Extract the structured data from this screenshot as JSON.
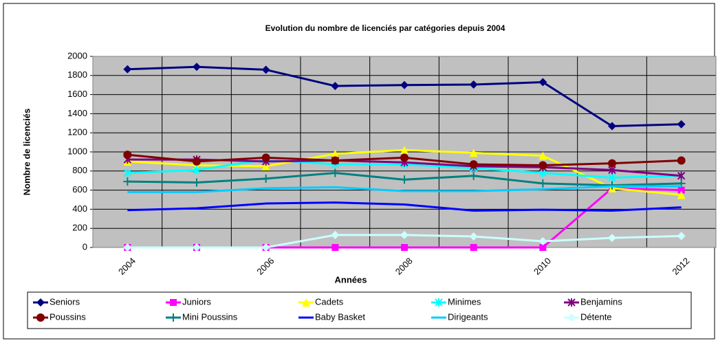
{
  "chart_data": {
    "type": "line",
    "title": "Evolution du nombre de licenciés par catégories depuis 2004",
    "x_label": "Années",
    "y_label": "Nombre de licenciés",
    "categories": [
      "2004",
      null,
      "2006",
      null,
      "2008",
      null,
      "2010",
      null,
      "2012"
    ],
    "ylim": [
      0,
      2000
    ],
    "yticks": [
      0,
      200,
      400,
      600,
      800,
      1000,
      1200,
      1400,
      1600,
      1800,
      2000
    ],
    "grid": true,
    "legend": "bottom",
    "series": [
      {
        "name": "Seniors",
        "color": "#000080",
        "marker": "diamond",
        "values": [
          1865,
          1890,
          1860,
          1690,
          1700,
          1705,
          1730,
          1270,
          1290
        ]
      },
      {
        "name": "Juniors",
        "color": "#ff00ff",
        "marker": "square",
        "values": [
          0,
          0,
          0,
          0,
          0,
          0,
          0,
          620,
          600
        ]
      },
      {
        "name": "Cadets",
        "color": "#ffff00",
        "marker": "triangle",
        "values": [
          900,
          860,
          850,
          980,
          1020,
          990,
          960,
          620,
          550
        ]
      },
      {
        "name": "Minimes",
        "color": "#00ffff",
        "marker": "star",
        "values": [
          780,
          810,
          920,
          870,
          870,
          830,
          780,
          730,
          750
        ]
      },
      {
        "name": "Benjamins",
        "color": "#800080",
        "marker": "star",
        "values": [
          920,
          920,
          900,
          910,
          890,
          850,
          840,
          810,
          750
        ]
      },
      {
        "name": "Poussins",
        "color": "#800000",
        "marker": "circle",
        "values": [
          970,
          900,
          940,
          910,
          940,
          870,
          860,
          880,
          910
        ]
      },
      {
        "name": "Mini Poussins",
        "color": "#008080",
        "marker": "plus",
        "values": [
          690,
          680,
          720,
          780,
          710,
          750,
          670,
          650,
          670
        ]
      },
      {
        "name": "Baby Basket",
        "color": "#0000ff",
        "marker": "none",
        "values": [
          390,
          410,
          460,
          470,
          450,
          385,
          395,
          385,
          420
        ]
      },
      {
        "name": "Dirigeants",
        "color": "#00ccff",
        "marker": "none",
        "values": [
          580,
          580,
          620,
          630,
          590,
          590,
          610,
          640,
          640
        ]
      },
      {
        "name": "Détente",
        "color": "#ccffff",
        "marker": "diamond",
        "values": [
          0,
          0,
          0,
          130,
          130,
          115,
          65,
          100,
          120
        ]
      }
    ]
  }
}
